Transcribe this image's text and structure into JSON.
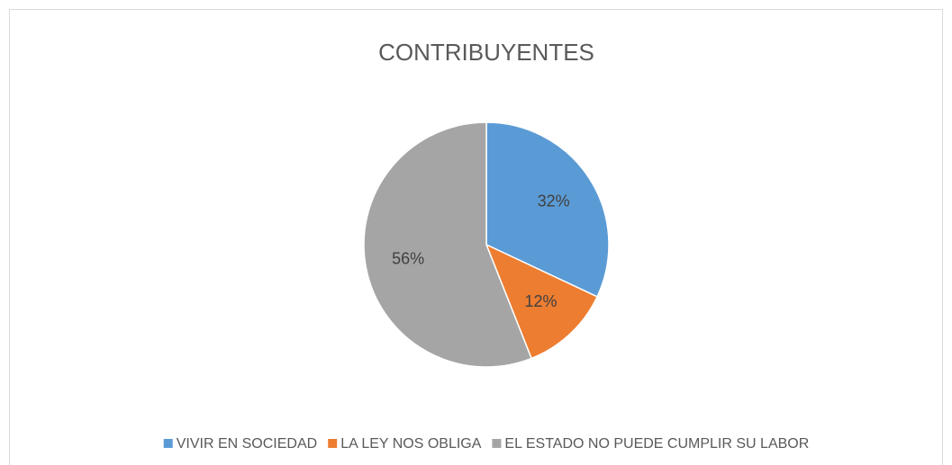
{
  "chart_data": {
    "type": "pie",
    "title": "CONTRIBUYENTES",
    "categories": [
      "VIVIR EN SOCIEDAD",
      "LA LEY NOS OBLIGA",
      "EL ESTADO NO PUEDE CUMPLIR SU LABOR"
    ],
    "values": [
      32,
      12,
      56
    ],
    "value_labels": [
      "32%",
      "12%",
      "56%"
    ],
    "colors": [
      "#5b9bd5",
      "#ed7d31",
      "#a5a5a5"
    ],
    "legend": "bottom"
  }
}
